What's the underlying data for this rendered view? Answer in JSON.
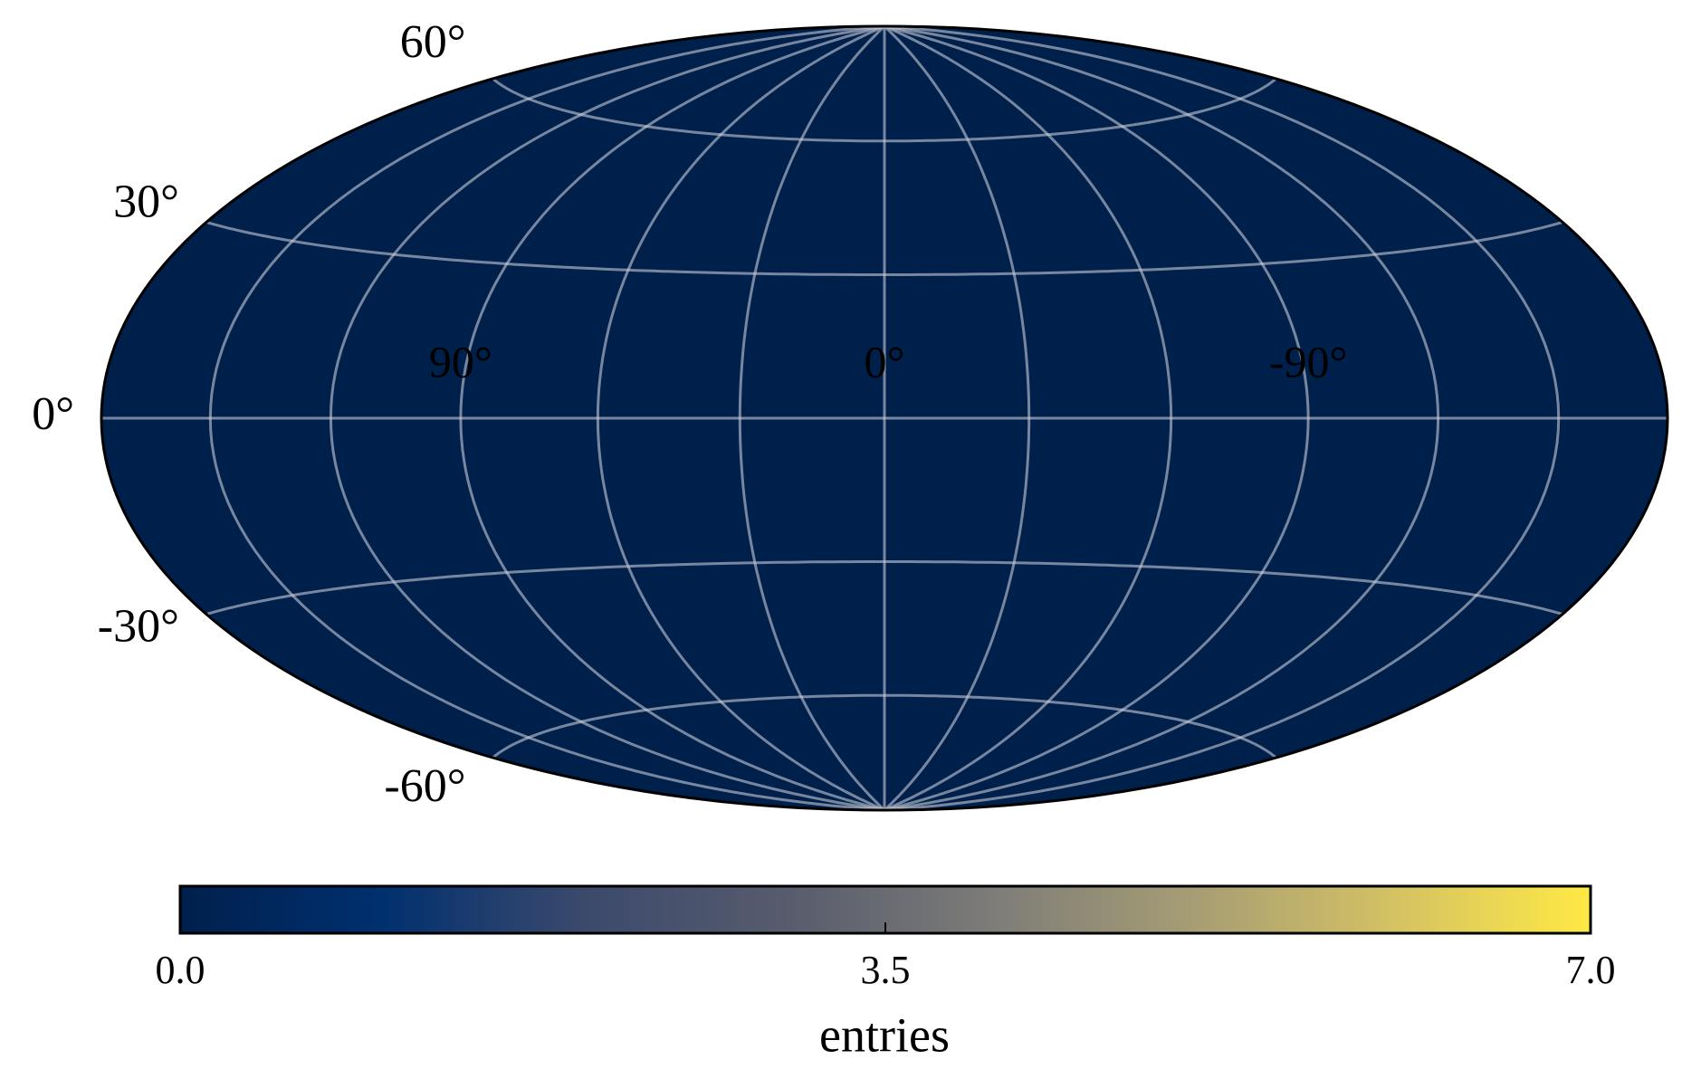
{
  "chart_data": {
    "type": "skymap",
    "projection": "hammer",
    "xticks": [
      {
        "value": 90,
        "label": "90°"
      },
      {
        "value": 0,
        "label": "0°"
      },
      {
        "value": -90,
        "label": "-90°"
      }
    ],
    "yticks": [
      {
        "value": 60,
        "label": "60°"
      },
      {
        "value": 30,
        "label": "30°"
      },
      {
        "value": 0,
        "label": "0°"
      },
      {
        "value": -30,
        "label": "-30°"
      },
      {
        "value": -60,
        "label": "-60°"
      }
    ],
    "grid": true,
    "colorbar": {
      "label": "entries",
      "lim": [
        0,
        7
      ],
      "ticks": [
        {
          "value": 0,
          "label": "0.0"
        },
        3.5,
        {
          "value": 7,
          "label": "7.0"
        }
      ],
      "colors": [
        "#00204c",
        "#00306f",
        "#3b496c",
        "#575c6d",
        "#7c7b78",
        "#a59c74",
        "#d3c164",
        "#ffe945"
      ]
    }
  }
}
